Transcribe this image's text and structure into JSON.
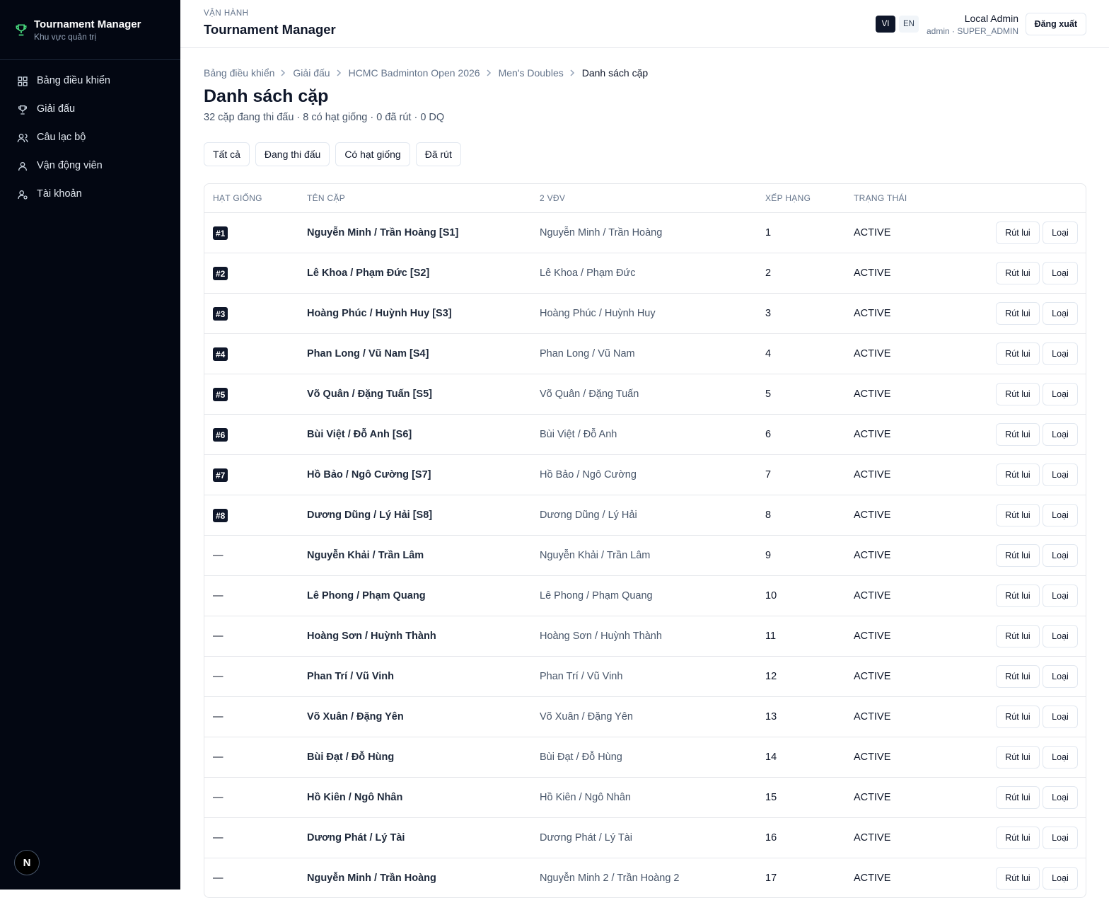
{
  "sidebar": {
    "brand": "Tournament Manager",
    "subtitle": "Khu vực quản trị",
    "nav": [
      "Bảng điều khiển",
      "Giải đấu",
      "Câu lạc bộ",
      "Vận động viên",
      "Tài khoản"
    ],
    "badge": "N"
  },
  "header": {
    "eyebrow": "VẬN HÀNH",
    "title": "Tournament Manager",
    "languages": [
      "VI",
      "EN"
    ],
    "user": "Local Admin",
    "role": "admin · SUPER_ADMIN",
    "logout": "Đăng xuất"
  },
  "breadcrumb": [
    "Bảng điều khiển",
    "Giải đấu",
    "HCMC Badminton Open 2026",
    "Men's Doubles",
    "Danh sách cặp"
  ],
  "page": {
    "title": "Danh sách cặp",
    "summary": "32 cặp đang thi đấu · 8 có hạt giống · 0 đã rút · 0 DQ"
  },
  "filters": [
    "Tất cả",
    "Đang thi đấu",
    "Có hạt giống",
    "Đã rút"
  ],
  "table": {
    "columns": [
      "HẠT GIỐNG",
      "TÊN CẶP",
      "2 VĐV",
      "XẾP HẠNG",
      "TRẠNG THÁI"
    ],
    "actions": [
      "Rút lui",
      "Loại"
    ],
    "rows": [
      [
        "#1",
        "Nguyễn Minh / Trần Hoàng [S1]",
        "Nguyễn Minh / Trần Hoàng",
        1,
        "ACTIVE"
      ],
      [
        "#2",
        "Lê Khoa / Phạm Đức [S2]",
        "Lê Khoa / Phạm Đức",
        2,
        "ACTIVE"
      ],
      [
        "#3",
        "Hoàng Phúc / Huỳnh Huy [S3]",
        "Hoàng Phúc / Huỳnh Huy",
        3,
        "ACTIVE"
      ],
      [
        "#4",
        "Phan Long / Vũ Nam [S4]",
        "Phan Long / Vũ Nam",
        4,
        "ACTIVE"
      ],
      [
        "#5",
        "Võ Quân / Đặng Tuấn [S5]",
        "Võ Quân / Đặng Tuấn",
        5,
        "ACTIVE"
      ],
      [
        "#6",
        "Bùi Việt / Đỗ Anh [S6]",
        "Bùi Việt / Đỗ Anh",
        6,
        "ACTIVE"
      ],
      [
        "#7",
        "Hồ Bảo / Ngô Cường [S7]",
        "Hồ Bảo / Ngô Cường",
        7,
        "ACTIVE"
      ],
      [
        "#8",
        "Dương Dũng / Lý Hải [S8]",
        "Dương Dũng / Lý Hải",
        8,
        "ACTIVE"
      ],
      [
        "—",
        "Nguyễn Khải / Trần Lâm",
        "Nguyễn Khải / Trần Lâm",
        9,
        "ACTIVE"
      ],
      [
        "—",
        "Lê Phong / Phạm Quang",
        "Lê Phong / Phạm Quang",
        10,
        "ACTIVE"
      ],
      [
        "—",
        "Hoàng Sơn / Huỳnh Thành",
        "Hoàng Sơn / Huỳnh Thành",
        11,
        "ACTIVE"
      ],
      [
        "—",
        "Phan Trí / Vũ Vinh",
        "Phan Trí / Vũ Vinh",
        12,
        "ACTIVE"
      ],
      [
        "—",
        "Võ Xuân / Đặng Yên",
        "Võ Xuân / Đặng Yên",
        13,
        "ACTIVE"
      ],
      [
        "—",
        "Bùi Đạt / Đỗ Hùng",
        "Bùi Đạt / Đỗ Hùng",
        14,
        "ACTIVE"
      ],
      [
        "—",
        "Hồ Kiên / Ngô Nhân",
        "Hồ Kiên / Ngô Nhân",
        15,
        "ACTIVE"
      ],
      [
        "—",
        "Dương Phát / Lý Tài",
        "Dương Phát / Lý Tài",
        16,
        "ACTIVE"
      ],
      [
        "—",
        "Nguyễn Minh / Trần Hoàng",
        "Nguyễn Minh 2 / Trần Hoàng 2",
        17,
        "ACTIVE"
      ]
    ]
  }
}
